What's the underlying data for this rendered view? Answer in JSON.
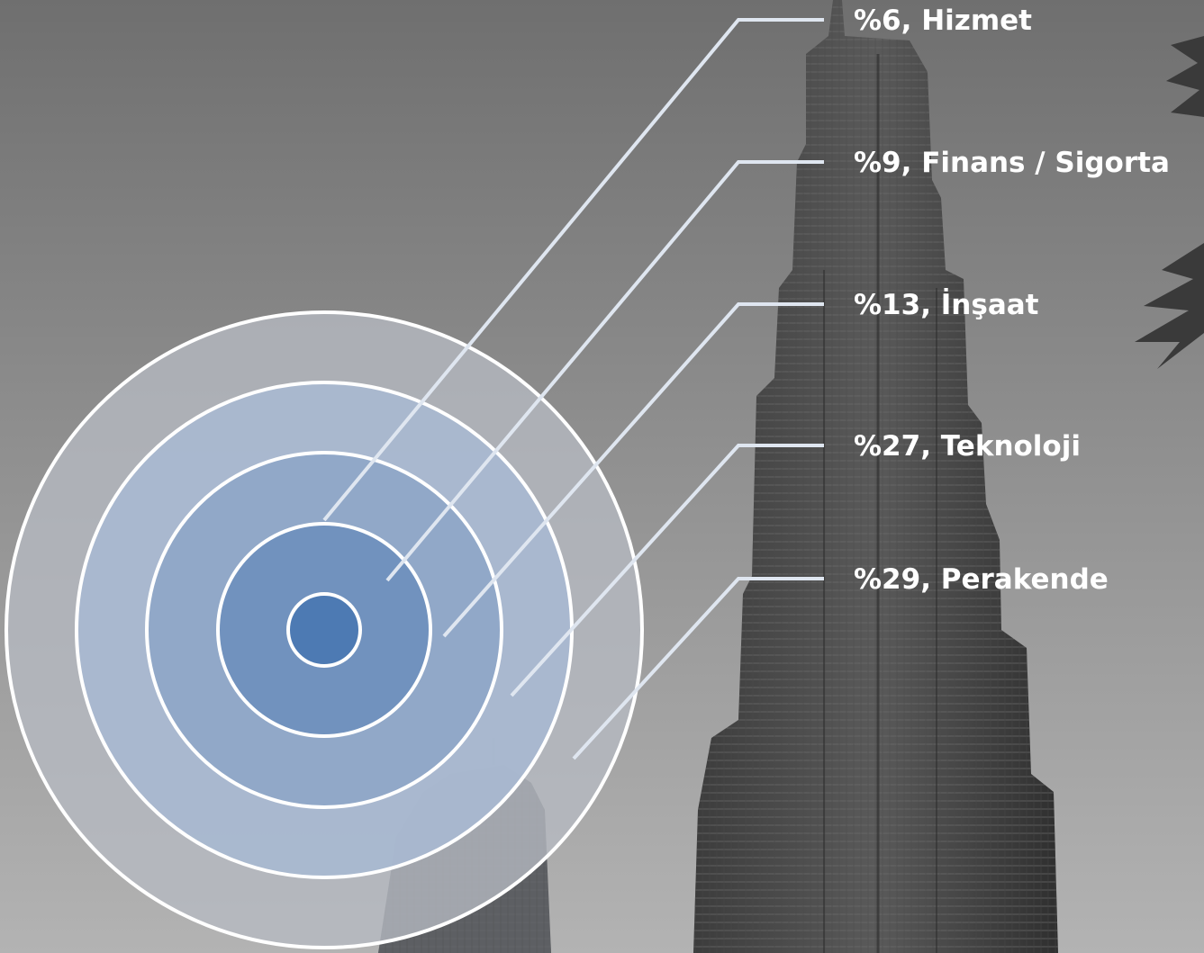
{
  "chart_data": {
    "type": "concentric-rings",
    "unit": "%",
    "segments": [
      {
        "value": 6,
        "name": "Hizmet",
        "label": "%6, Hizmet"
      },
      {
        "value": 9,
        "name": "Finans / Sigorta",
        "label": "%9, Finans / Sigorta"
      },
      {
        "value": 13,
        "name": "İnşaat",
        "label": "%13, İnşaat"
      },
      {
        "value": 27,
        "name": "Teknoloji",
        "label": "%27, Teknoloji"
      },
      {
        "value": 29,
        "name": "Perakende",
        "label": "%29, Perakende"
      }
    ],
    "ring_colors": [
      "#4a78b2",
      "#6f90bd",
      "#8fa6c8",
      "#a8b8d0",
      "#b6bac2"
    ]
  }
}
